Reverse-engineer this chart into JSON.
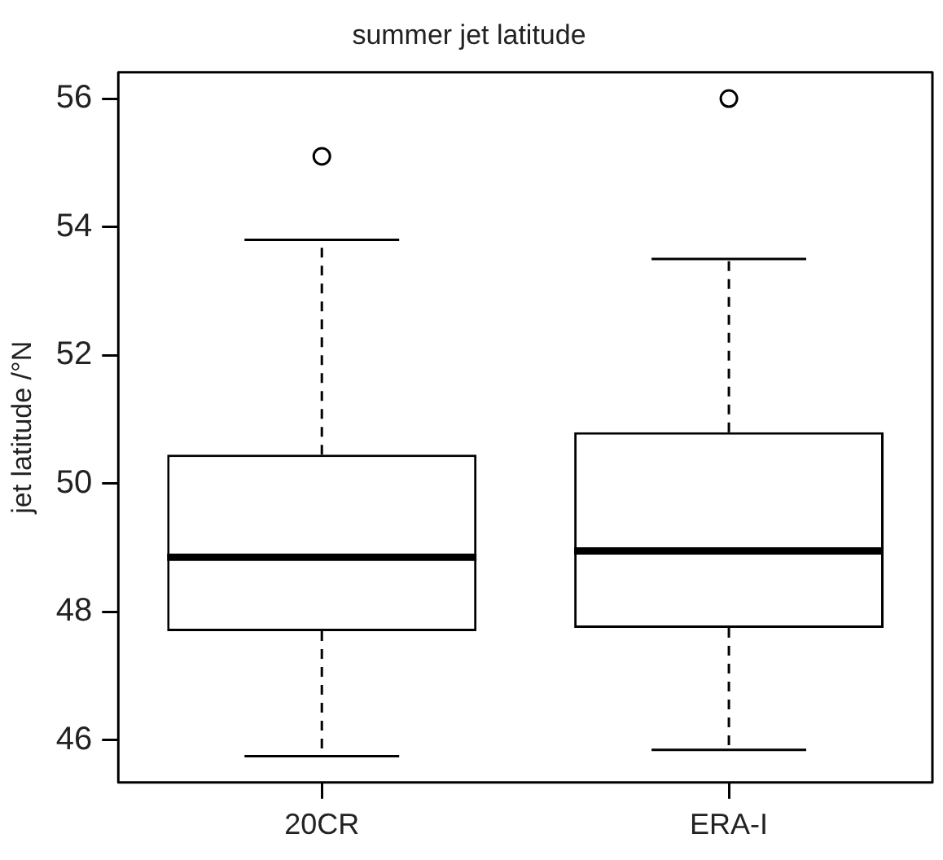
{
  "chart_data": {
    "type": "box",
    "title": "summer jet latitude",
    "ylabel": "jet latitude /°N",
    "categories": [
      "20CR",
      "ERA-I"
    ],
    "boxes": [
      {
        "low": 45.75,
        "q1": 47.7,
        "median": 48.85,
        "q3": 50.45,
        "high": 53.8,
        "outliers": [
          55.1
        ]
      },
      {
        "low": 45.85,
        "q1": 47.75,
        "median": 48.95,
        "q3": 50.8,
        "high": 53.5,
        "outliers": [
          56.0
        ]
      }
    ],
    "ylim": [
      45.34,
      56.41
    ],
    "yticks": [
      46,
      48,
      50,
      52,
      54,
      56
    ],
    "grid": false,
    "legend": false
  }
}
